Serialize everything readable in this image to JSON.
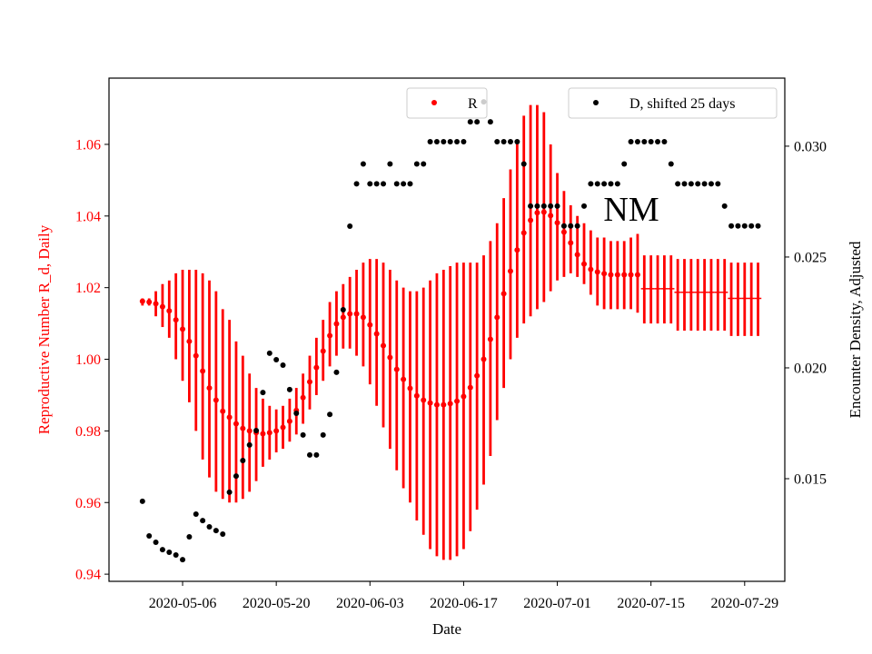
{
  "chart_data": {
    "type": "errorbar",
    "xlabel": "Date",
    "ylabel": "Reproductive Number R_d, Daily",
    "y2label": "Encounter Density, Adjusted",
    "annotations": [
      {
        "text": "NM"
      }
    ],
    "xlim": [
      "2020-04-25",
      "2020-08-04"
    ],
    "xticks": [
      "2020-05-06",
      "2020-05-20",
      "2020-06-03",
      "2020-06-17",
      "2020-07-01",
      "2020-07-15",
      "2020-07-29"
    ],
    "ylim": [
      0.938,
      1.0785
    ],
    "yticks": [
      0.94,
      0.96,
      0.98,
      {
        "value": 1.0,
        "label": "1.00"
      },
      1.02,
      1.04,
      1.06
    ],
    "y2lim": [
      0.01037,
      0.03307
    ],
    "y2ticks": [
      0.015,
      {
        "value": 0.02,
        "label": "0.020"
      },
      0.025,
      {
        "value": 0.03,
        "label": "0.030"
      }
    ],
    "x": [
      "2020-04-30",
      "2020-05-01",
      "2020-05-02",
      "2020-05-03",
      "2020-05-04",
      "2020-05-05",
      "2020-05-06",
      "2020-05-07",
      "2020-05-08",
      "2020-05-09",
      "2020-05-10",
      "2020-05-11",
      "2020-05-12",
      "2020-05-13",
      "2020-05-14",
      "2020-05-15",
      "2020-05-16",
      "2020-05-17",
      "2020-05-18",
      "2020-05-19",
      "2020-05-20",
      "2020-05-21",
      "2020-05-22",
      "2020-05-23",
      "2020-05-24",
      "2020-05-25",
      "2020-05-26",
      "2020-05-27",
      "2020-05-28",
      "2020-05-29",
      "2020-05-30",
      "2020-05-31",
      "2020-06-01",
      "2020-06-02",
      "2020-06-03",
      "2020-06-04",
      "2020-06-05",
      "2020-06-06",
      "2020-06-07",
      "2020-06-08",
      "2020-06-09",
      "2020-06-10",
      "2020-06-11",
      "2020-06-12",
      "2020-06-13",
      "2020-06-14",
      "2020-06-15",
      "2020-06-16",
      "2020-06-17",
      "2020-06-18",
      "2020-06-19",
      "2020-06-20",
      "2020-06-21",
      "2020-06-22",
      "2020-06-23",
      "2020-06-24",
      "2020-06-25",
      "2020-06-26",
      "2020-06-27",
      "2020-06-28",
      "2020-06-29",
      "2020-06-30",
      "2020-07-01",
      "2020-07-02",
      "2020-07-03",
      "2020-07-04",
      "2020-07-05",
      "2020-07-06",
      "2020-07-07",
      "2020-07-08",
      "2020-07-09",
      "2020-07-10",
      "2020-07-11",
      "2020-07-12",
      "2020-07-13",
      "2020-07-14",
      "2020-07-15",
      "2020-07-16",
      "2020-07-17",
      "2020-07-18",
      "2020-07-19",
      "2020-07-20",
      "2020-07-21",
      "2020-07-22",
      "2020-07-23",
      "2020-07-24",
      "2020-07-25",
      "2020-07-26",
      "2020-07-27",
      "2020-07-28",
      "2020-07-29",
      "2020-07-30",
      "2020-07-31"
    ],
    "series": [
      {
        "name": "R",
        "color": "#ff0000",
        "legend": "upper center",
        "values": [
          1.0162,
          1.016,
          1.0155,
          1.0147,
          1.0135,
          1.011,
          1.0084,
          1.005,
          1.001,
          0.9967,
          0.992,
          0.9886,
          0.9855,
          0.9838,
          0.982,
          0.9807,
          0.98,
          0.9795,
          0.9792,
          0.9795,
          0.98,
          0.981,
          0.9827,
          0.9857,
          0.9893,
          0.9937,
          0.9977,
          1.0023,
          1.0066,
          1.0099,
          1.0117,
          1.0127,
          1.0127,
          1.0117,
          1.0096,
          1.0071,
          1.0038,
          1.0005,
          0.9972,
          0.9944,
          0.9919,
          0.9898,
          0.9886,
          0.9878,
          0.9873,
          0.9873,
          0.9876,
          0.9883,
          0.9896,
          0.9921,
          0.9954,
          1.0,
          1.0056,
          1.0117,
          1.0183,
          1.0246,
          1.0305,
          1.0353,
          1.0388,
          1.0409,
          1.0411,
          1.0401,
          1.0381,
          1.0355,
          1.0325,
          1.0292,
          1.0266,
          1.0251,
          1.0244,
          1.0239,
          1.0236,
          1.0236,
          1.0236,
          1.0236,
          1.0236,
          null,
          null,
          null,
          null,
          null,
          null,
          null,
          null,
          null,
          null,
          null,
          null,
          null,
          null,
          null,
          null,
          null,
          null
        ],
        "upper": [
          1.017,
          1.017,
          1.019,
          1.021,
          1.022,
          1.024,
          1.025,
          1.025,
          1.025,
          1.024,
          1.022,
          1.019,
          1.014,
          1.011,
          1.005,
          1.001,
          0.996,
          0.992,
          0.989,
          0.987,
          0.986,
          0.987,
          0.989,
          0.992,
          0.996,
          1.001,
          1.006,
          1.011,
          1.016,
          1.019,
          1.021,
          1.023,
          1.025,
          1.027,
          1.028,
          1.028,
          1.027,
          1.025,
          1.022,
          1.02,
          1.019,
          1.019,
          1.02,
          1.022,
          1.024,
          1.025,
          1.026,
          1.027,
          1.027,
          1.027,
          1.027,
          1.029,
          1.033,
          1.038,
          1.045,
          1.053,
          1.061,
          1.068,
          1.071,
          1.071,
          1.069,
          1.06,
          1.052,
          1.047,
          1.043,
          1.04,
          1.038,
          1.036,
          1.034,
          1.034,
          1.033,
          1.033,
          1.033,
          1.034,
          1.035,
          1.029,
          1.029,
          1.029,
          1.029,
          1.029,
          1.028,
          1.028,
          1.028,
          1.028,
          1.028,
          1.028,
          1.028,
          1.028,
          1.027,
          1.027,
          1.027,
          1.027,
          1.027
        ],
        "lower": [
          1.015,
          1.015,
          1.012,
          1.009,
          1.006,
          1.0,
          0.994,
          0.988,
          0.98,
          0.972,
          0.967,
          0.963,
          0.961,
          0.96,
          0.96,
          0.961,
          0.963,
          0.966,
          0.97,
          0.972,
          0.974,
          0.975,
          0.977,
          0.979,
          0.982,
          0.986,
          0.99,
          0.994,
          0.998,
          1.001,
          1.003,
          1.003,
          1.001,
          0.998,
          0.993,
          0.987,
          0.981,
          0.975,
          0.969,
          0.964,
          0.96,
          0.955,
          0.951,
          0.947,
          0.945,
          0.944,
          0.944,
          0.945,
          0.947,
          0.952,
          0.958,
          0.965,
          0.973,
          0.983,
          0.992,
          1.0,
          1.006,
          1.01,
          1.012,
          1.014,
          1.016,
          1.019,
          1.022,
          1.023,
          1.024,
          1.023,
          1.021,
          1.018,
          1.015,
          1.014,
          1.014,
          1.014,
          1.014,
          1.014,
          1.013,
          1.01,
          1.01,
          1.01,
          1.01,
          1.01,
          1.008,
          1.008,
          1.008,
          1.008,
          1.008,
          1.008,
          1.008,
          1.008,
          1.0065,
          1.0065,
          1.0065,
          1.0065,
          1.0065
        ]
      },
      {
        "name": "D, shifted 25 days",
        "color": "#000000",
        "axis": "y2",
        "legend": "upper right",
        "values": [
          0.01398,
          0.01242,
          0.01213,
          0.0118,
          0.01168,
          0.01156,
          0.01135,
          0.01238,
          0.0134,
          0.01311,
          0.01283,
          0.01266,
          0.0125,
          0.01439,
          0.01512,
          0.01582,
          0.01652,
          0.01717,
          0.01889,
          0.02066,
          0.02037,
          0.02012,
          0.01902,
          0.01795,
          0.01697,
          0.01607,
          0.01607,
          0.01697,
          0.0179,
          0.0198,
          0.02262,
          0.02639,
          0.0283,
          0.0292,
          0.0283,
          0.0283,
          0.0283,
          0.0292,
          0.0283,
          0.0283,
          0.0283,
          0.0292,
          0.0292,
          0.0302,
          0.0302,
          0.0302,
          0.0302,
          0.0302,
          0.0302,
          0.0311,
          0.0311,
          0.032,
          0.0311,
          0.0302,
          0.0302,
          0.0302,
          0.0302,
          0.0292,
          0.0273,
          0.0273,
          0.0273,
          0.0273,
          0.0273,
          0.0264,
          0.0264,
          0.0264,
          0.0273,
          0.0283,
          0.0283,
          0.0283,
          0.0283,
          0.0283,
          0.0292,
          0.0302,
          0.0302,
          0.0302,
          0.0302,
          0.0302,
          0.0302,
          0.0292,
          0.0283,
          0.0283,
          0.0283,
          0.0283,
          0.0283,
          0.0283,
          0.0283,
          0.0273,
          0.0264,
          0.0264,
          0.0264,
          0.0264,
          0.0264
        ]
      }
    ],
    "tail": {
      "x": [
        "2020-07-14",
        "2020-07-15",
        "2020-07-16",
        "2020-07-17",
        "2020-07-18",
        "2020-07-19",
        "2020-07-20",
        "2020-07-21",
        "2020-07-22",
        "2020-07-23",
        "2020-07-24",
        "2020-07-25",
        "2020-07-26",
        "2020-07-27",
        "2020-07-28",
        "2020-07-29",
        "2020-07-30",
        "2020-07-31"
      ],
      "values": [
        1.0197,
        1.0197,
        1.0197,
        1.0197,
        1.0197,
        1.0187,
        1.0187,
        1.0187,
        1.0187,
        1.0187,
        1.0187,
        1.0187,
        1.0187,
        1.017,
        1.017,
        1.017,
        1.017,
        1.017
      ]
    }
  }
}
